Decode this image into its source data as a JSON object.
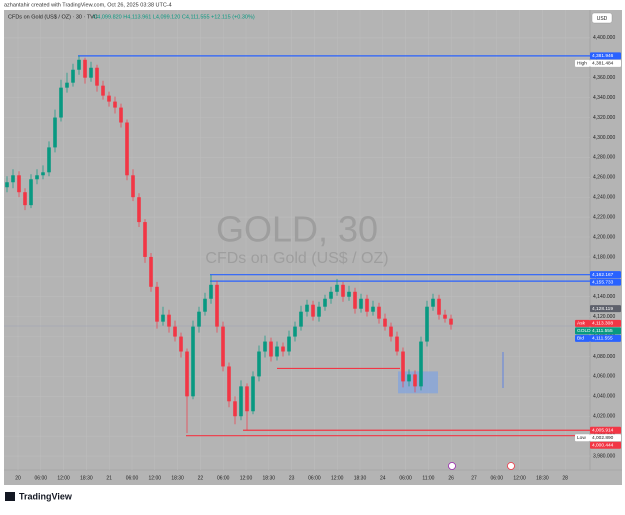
{
  "header": {
    "credit": "azhantahir created with TradingView.com, Oct 26, 2025 03:38 UTC-4",
    "logo": "TradingView"
  },
  "chart_data": {
    "type": "candlestick",
    "symbol_line": "CFDs on Gold (US$ / OZ) · 30 · TVC",
    "ohlc_legend": "O4,099.820 H4,113.961 L4,099.120 C4,111.555 +12.115 (+0.30%)",
    "currency": "USD",
    "watermark": "GOLD, 30",
    "watermark_sub": "CFDs on Gold (US$ / OZ)",
    "up_color": "#089981",
    "down_color": "#f23645",
    "time_ticks": [
      "20",
      "06:00",
      "12:00",
      "18:30",
      "21",
      "06:00",
      "12:00",
      "18:30",
      "22",
      "06:00",
      "12:00",
      "18:30",
      "23",
      "06:00",
      "12:00",
      "18:30",
      "24",
      "06:00",
      "11:00",
      "26",
      "27",
      "06:00",
      "12:00",
      "18:30",
      "28"
    ],
    "ylim": [
      3966,
      4428
    ],
    "yticks": [
      {
        "value": 4400,
        "label": "4,400.000"
      },
      {
        "value": 4380,
        "label": "4,380.000"
      },
      {
        "value": 4360,
        "label": "4,360.000"
      },
      {
        "value": 4340,
        "label": "4,340.000"
      },
      {
        "value": 4320,
        "label": "4,320.000"
      },
      {
        "value": 4300,
        "label": "4,300.000"
      },
      {
        "value": 4280,
        "label": "4,280.000"
      },
      {
        "value": 4260,
        "label": "4,260.000"
      },
      {
        "value": 4240,
        "label": "4,240.000"
      },
      {
        "value": 4220,
        "label": "4,220.000"
      },
      {
        "value": 4200,
        "label": "4,200.000"
      },
      {
        "value": 4180,
        "label": "4,180.000"
      },
      {
        "value": 4160,
        "label": "4,160.000"
      },
      {
        "value": 4140,
        "label": "4,140.000"
      },
      {
        "value": 4120,
        "label": "4,120.000"
      },
      {
        "value": 4100,
        "label": "4,100.000"
      },
      {
        "value": 4080,
        "label": "4,080.000"
      },
      {
        "value": 4060,
        "label": "4,060.000"
      },
      {
        "value": 4040,
        "label": "4,040.000"
      },
      {
        "value": 4020,
        "label": "4,020.000"
      },
      {
        "value": 4000,
        "label": "4,000.000"
      },
      {
        "value": 3980,
        "label": "3,980.000"
      }
    ],
    "open": [
      4250,
      4255,
      4262,
      4245,
      4232,
      4258,
      4262,
      4265,
      4290,
      4320,
      4350,
      4355,
      4368,
      4378,
      4360,
      4370,
      4352,
      4342,
      4336,
      4330,
      4315,
      4262,
      4240,
      4215,
      4180,
      4150,
      4115,
      4122,
      4110,
      4100,
      4085,
      4040,
      4110,
      4125,
      4138,
      4152,
      4110,
      4070,
      4035,
      4020,
      4050,
      4025,
      4060,
      4085,
      4095,
      4080,
      4090,
      4085,
      4100,
      4110,
      4125,
      4132,
      4120,
      4130,
      4138,
      4145,
      4152,
      4140,
      4145,
      4128,
      4138,
      4125,
      4130,
      4118,
      4110,
      4100,
      4085,
      4055,
      4062,
      4050,
      4095,
      4130,
      4138,
      4122,
      4118
    ],
    "high": [
      4261,
      4268,
      4266,
      4249,
      4263,
      4268,
      4272,
      4296,
      4328,
      4358,
      4365,
      4374,
      4382,
      4380,
      4376,
      4373,
      4357,
      4346,
      4341,
      4334,
      4318,
      4268,
      4244,
      4218,
      4184,
      4155,
      4130,
      4127,
      4116,
      4104,
      4088,
      4116,
      4130,
      4144,
      4162,
      4156,
      4115,
      4074,
      4040,
      4056,
      4053,
      4065,
      4091,
      4101,
      4099,
      4095,
      4094,
      4106,
      4115,
      4131,
      4137,
      4136,
      4135,
      4142,
      4150,
      4158,
      4155,
      4151,
      4149,
      4143,
      4142,
      4136,
      4134,
      4123,
      4114,
      4105,
      4089,
      4067,
      4066,
      4100,
      4136,
      4143,
      4142,
      4127,
      4122
    ],
    "low": [
      4245,
      4249,
      4240,
      4227,
      4229,
      4253,
      4258,
      4261,
      4285,
      4316,
      4345,
      4351,
      4363,
      4354,
      4356,
      4346,
      4338,
      4331,
      4324,
      4310,
      4257,
      4236,
      4210,
      4174,
      4145,
      4108,
      4111,
      4104,
      4095,
      4079,
      4003,
      4037,
      4104,
      4121,
      4133,
      4104,
      4065,
      4029,
      4012,
      4016,
      4006,
      4022,
      4055,
      4079,
      4075,
      4076,
      4080,
      4081,
      4095,
      4106,
      4120,
      4116,
      4115,
      4126,
      4133,
      4141,
      4135,
      4136,
      4123,
      4124,
      4120,
      4121,
      4113,
      4106,
      4095,
      4081,
      4049,
      4050,
      4044,
      4046,
      4090,
      4126,
      4117,
      4114,
      4107
    ],
    "close": [
      4255,
      4262,
      4245,
      4232,
      4258,
      4262,
      4265,
      4290,
      4320,
      4350,
      4355,
      4368,
      4378,
      4360,
      4370,
      4352,
      4342,
      4336,
      4330,
      4315,
      4262,
      4240,
      4215,
      4180,
      4150,
      4115,
      4122,
      4110,
      4100,
      4085,
      4040,
      4110,
      4125,
      4138,
      4152,
      4110,
      4070,
      4035,
      4020,
      4050,
      4025,
      4060,
      4085,
      4095,
      4080,
      4090,
      4085,
      4100,
      4110,
      4125,
      4132,
      4120,
      4130,
      4138,
      4145,
      4152,
      4140,
      4145,
      4128,
      4138,
      4125,
      4130,
      4118,
      4110,
      4100,
      4085,
      4055,
      4062,
      4050,
      4095,
      4130,
      4138,
      4122,
      4118,
      4112
    ],
    "price_lines": [
      {
        "value": 4381.946,
        "color": "#2962ff"
      },
      {
        "value": 4162.167,
        "color": "#2962ff"
      },
      {
        "value": 4155.733,
        "color": "#2962ff"
      },
      {
        "value": 4068,
        "color": "#f23645"
      },
      {
        "value": 4005.914,
        "color": "#f23645"
      },
      {
        "value": 4000.444,
        "color": "#f23645"
      }
    ],
    "zone": {
      "low": 4043,
      "high": 4065,
      "color": "#7fa3e0"
    },
    "badges": [
      {
        "value": 4381.946,
        "label": "4,381.946",
        "color": "#2962ff"
      },
      {
        "value": 4381.484,
        "label": "4,381.484",
        "tag": "High",
        "color": "#ffffff"
      },
      {
        "value": 4162.167,
        "label": "4,162.167",
        "color": "#2962ff"
      },
      {
        "value": 4155.733,
        "label": "4,155.733",
        "color": "#2962ff"
      },
      {
        "value": 4128.119,
        "label": "4,128.119",
        "color": "#5d606b"
      },
      {
        "value": 4113.308,
        "label": "4,113.308",
        "tag": "Ask",
        "color": "#f23645"
      },
      {
        "value": 4111.555,
        "label": "4,111.555",
        "tag": "GOLD",
        "color": "#089981"
      },
      {
        "value": 4111.555,
        "label": "4,111.555",
        "tag": "Bid",
        "color": "#2962ff"
      },
      {
        "value": 4005.914,
        "label": "4,005.914",
        "color": "#f23645"
      },
      {
        "value": 4002.89,
        "label": "4,002.890",
        "tag": "Low",
        "color": "#ffffff"
      },
      {
        "value": 4000.444,
        "label": "4,000.444",
        "color": "#f23645"
      }
    ]
  }
}
